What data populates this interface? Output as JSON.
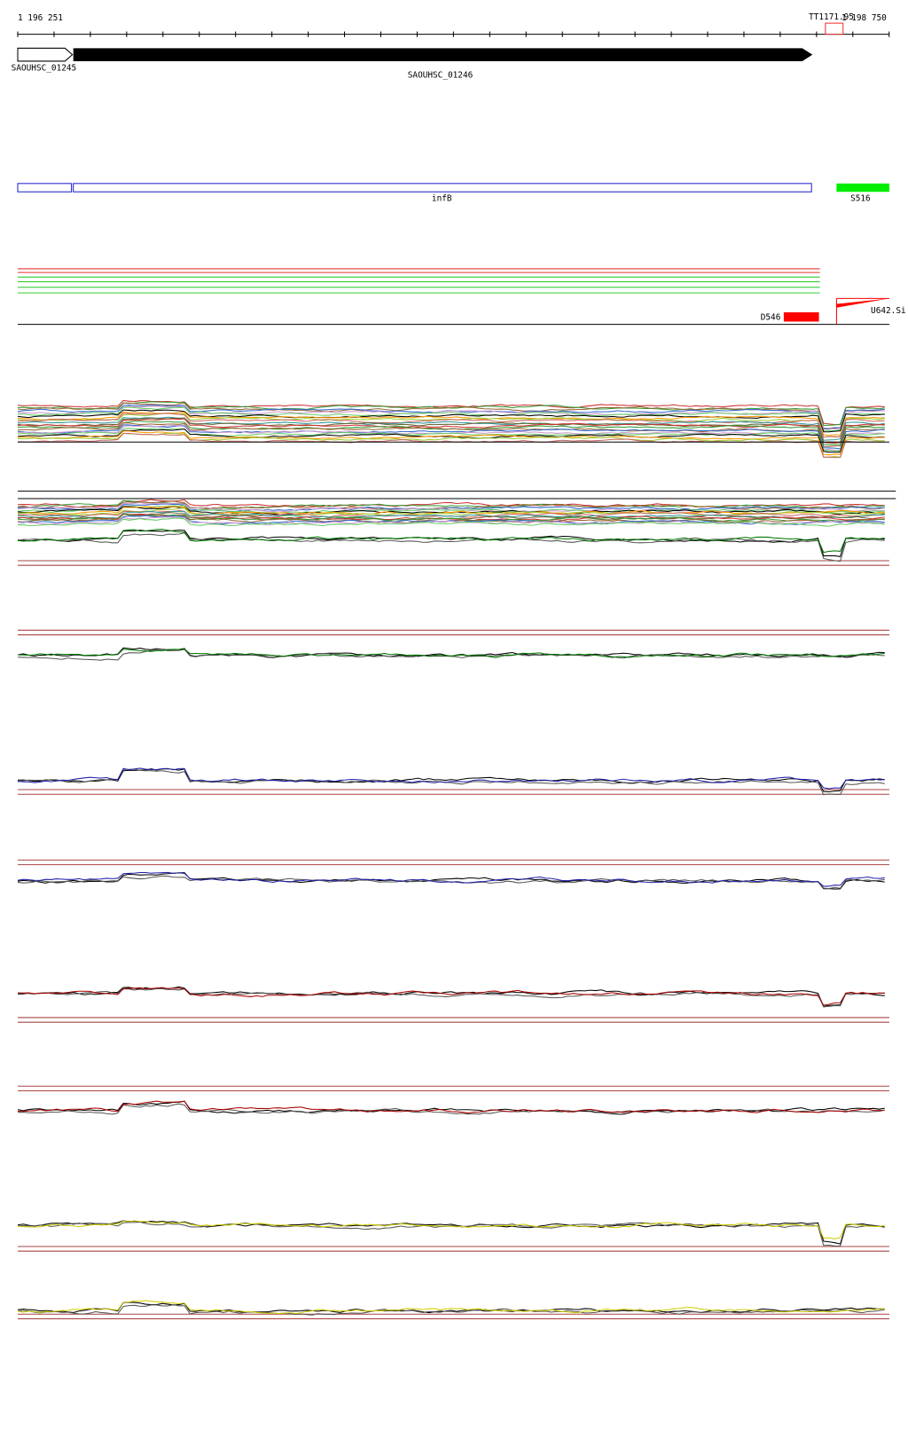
{
  "ruler": {
    "start": "1 196 251",
    "end": "1 198 750",
    "marker": "TT1171.95"
  },
  "genes": [
    "SAOUHSC_01245",
    "SAOUHSC_01246"
  ],
  "features": {
    "gene": "infB",
    "site": "S516"
  },
  "peaks": {
    "down": "D546",
    "up": "U642.Si"
  }
}
